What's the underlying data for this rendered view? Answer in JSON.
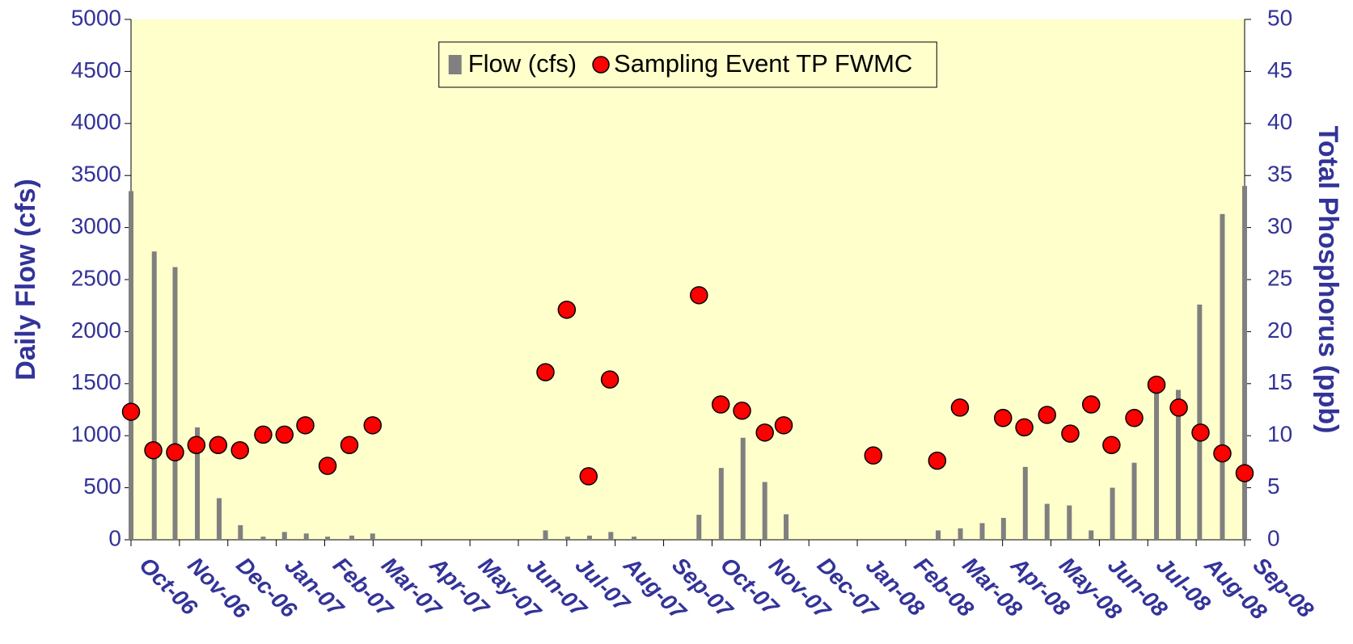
{
  "chart_data": {
    "type": "bar",
    "y_label": "Daily Flow (cfs)",
    "y2_label": "Total Phosphorus (ppb)",
    "xlim": [
      0,
      23
    ],
    "xticks": [
      {
        "value": 0,
        "label": "Oct-06"
      },
      {
        "value": 1,
        "label": "Nov-06"
      },
      {
        "value": 2,
        "label": "Dec-06"
      },
      {
        "value": 3,
        "label": "Jan-07"
      },
      {
        "value": 4,
        "label": "Feb-07"
      },
      {
        "value": 5,
        "label": "Mar-07"
      },
      {
        "value": 6,
        "label": "Apr-07"
      },
      {
        "value": 7,
        "label": "May-07"
      },
      {
        "value": 8,
        "label": "Jun-07"
      },
      {
        "value": 9,
        "label": "Jul-07"
      },
      {
        "value": 10,
        "label": "Aug-07"
      },
      {
        "value": 11,
        "label": "Sep-07"
      },
      {
        "value": 12,
        "label": "Oct-07"
      },
      {
        "value": 13,
        "label": "Nov-07"
      },
      {
        "value": 14,
        "label": "Dec-07"
      },
      {
        "value": 15,
        "label": "Jan-08"
      },
      {
        "value": 16,
        "label": "Feb-08"
      },
      {
        "value": 17,
        "label": "Mar-08"
      },
      {
        "value": 18,
        "label": "Apr-08"
      },
      {
        "value": 19,
        "label": "May-08"
      },
      {
        "value": 20,
        "label": "Jun-08"
      },
      {
        "value": 21,
        "label": "Jul-08"
      },
      {
        "value": 22,
        "label": "Aug-08"
      },
      {
        "value": 23,
        "label": "Sep-08"
      }
    ],
    "ylim": [
      0,
      5000
    ],
    "yticks": [
      0,
      500,
      1000,
      1500,
      2000,
      2500,
      3000,
      3500,
      4000,
      4500,
      5000
    ],
    "y2lim": [
      0,
      50
    ],
    "y2ticks": [
      0,
      5,
      10,
      15,
      20,
      25,
      30,
      35,
      40,
      45,
      50
    ],
    "grid": false,
    "legend": "top",
    "series": [
      {
        "name": "Flow (cfs)",
        "type": "bar",
        "color": "#808080",
        "x": [
          0,
          0.48,
          0.91,
          1.37,
          1.82,
          2.26,
          2.73,
          3.17,
          3.62,
          4.06,
          4.56,
          4.99,
          8.56,
          9.02,
          9.47,
          9.91,
          10.39,
          11.73,
          12.19,
          12.64,
          13.09,
          13.53,
          16.67,
          17.13,
          17.58,
          18.02,
          18.47,
          18.92,
          19.38,
          19.83,
          20.27,
          20.72,
          21.18,
          21.63,
          22.07,
          22.54,
          23
        ],
        "values": [
          3350,
          2770,
          2620,
          1080,
          400,
          140,
          30,
          75,
          60,
          30,
          40,
          60,
          90,
          30,
          40,
          75,
          30,
          240,
          690,
          980,
          555,
          245,
          90,
          110,
          160,
          210,
          700,
          345,
          330,
          90,
          500,
          740,
          1480,
          1440,
          2260,
          3130,
          3400
        ]
      },
      {
        "name": "Sampling Event TP FWMC",
        "type": "scatter",
        "axis": "y2",
        "color": "#ff0000",
        "x": [
          0,
          0.46,
          0.91,
          1.35,
          1.8,
          2.25,
          2.73,
          3.17,
          3.6,
          4.06,
          4.51,
          4.99,
          8.56,
          9,
          9.45,
          9.89,
          11.73,
          12.18,
          12.62,
          13.09,
          13.48,
          15.33,
          16.65,
          17.12,
          18.01,
          18.45,
          18.92,
          19.4,
          19.83,
          20.25,
          20.72,
          21.18,
          21.64,
          22.09,
          22.54,
          23
        ],
        "values": [
          12.3,
          8.6,
          8.4,
          9.1,
          9.1,
          8.6,
          10.1,
          10.1,
          11,
          7.1,
          9.1,
          11,
          16.1,
          22.1,
          6.1,
          15.4,
          23.5,
          13,
          12.4,
          10.3,
          11,
          8.1,
          7.6,
          12.7,
          11.7,
          10.8,
          12,
          10.2,
          13,
          9.1,
          11.7,
          14.9,
          12.7,
          10.3,
          8.3,
          6.4
        ]
      }
    ]
  }
}
